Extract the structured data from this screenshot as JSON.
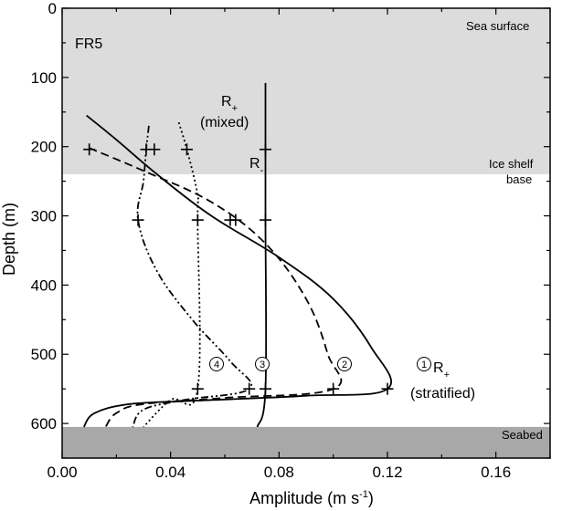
{
  "chart_data": {
    "type": "line",
    "panel_label": "FR5",
    "xlabel": "Amplitude (m s",
    "xlabel_sup": "-1",
    "xlabel_close": ")",
    "ylabel": "Depth (m)",
    "xlim": [
      0,
      0.18
    ],
    "ylim": [
      650,
      0
    ],
    "y_inverted": true,
    "x_ticks": [
      0.0,
      0.04,
      0.08,
      0.12,
      0.16
    ],
    "x_tick_labels": [
      "0.00",
      "0.04",
      "0.08",
      "0.12",
      "0.16"
    ],
    "y_ticks": [
      0,
      100,
      200,
      300,
      400,
      500,
      600
    ],
    "y_tick_labels": [
      "0",
      "100",
      "200",
      "300",
      "400",
      "500",
      "600"
    ],
    "regions": [
      {
        "label": "Sea surface",
        "y_from": 0,
        "y_to": 240,
        "color": "#dcdcdc"
      },
      {
        "label": "Seabed",
        "y_from": 605,
        "y_to": 650,
        "color": "#a8a8a8"
      }
    ],
    "region_labels": {
      "sea_surface": "Sea surface",
      "ice_shelf_base_1": "Ice shelf",
      "ice_shelf_base_2": "base",
      "seabed": "Seabed"
    },
    "curve_labels": {
      "r_plus_mixed_main": "R",
      "r_plus_mixed_sub": "+",
      "r_plus_mixed_note": "(mixed)",
      "r_minus_main": "R",
      "r_minus_sub": "-",
      "r_plus_strat_main": "R",
      "r_plus_strat_sub": "+",
      "r_plus_strat_note": "(stratified)"
    },
    "mode_numbers": [
      "1",
      "2",
      "3",
      "4"
    ],
    "series": [
      {
        "style": "solid",
        "x": [
          0.009,
          0.02,
          0.035,
          0.055,
          0.08,
          0.1,
          0.114,
          0.12,
          0.09,
          0.05,
          0.025,
          0.012,
          0.008
        ],
        "y": [
          155,
          190,
          240,
          300,
          360,
          420,
          490,
          550,
          560,
          567,
          572,
          585,
          605
        ],
        "markers_x": [
          0.034,
          0.064,
          0.12
        ],
        "markers_y": [
          204,
          306,
          550
        ]
      },
      {
        "style": "dashed",
        "x": [
          0.01,
          0.03,
          0.055,
          0.075,
          0.09,
          0.098,
          0.1,
          0.06,
          0.03,
          0.02,
          0.016
        ],
        "y": [
          202,
          235,
          280,
          340,
          420,
          500,
          550,
          563,
          572,
          585,
          605
        ],
        "markers_x": [
          0.01,
          0.062,
          0.1
        ],
        "markers_y": [
          204,
          306,
          550
        ]
      },
      {
        "style": "dash-dot-dot",
        "x": [
          0.032,
          0.031,
          0.03,
          0.028,
          0.035,
          0.048,
          0.062,
          0.069,
          0.045,
          0.03,
          0.026
        ],
        "y": [
          170,
          204,
          250,
          306,
          380,
          450,
          510,
          550,
          566,
          580,
          605
        ],
        "markers_x": [
          0.031,
          0.028,
          0.069
        ],
        "markers_y": [
          204,
          306,
          550
        ],
        "note": "R+ (mixed) region start"
      },
      {
        "style": "dotted",
        "x": [
          0.043,
          0.046,
          0.05,
          0.05,
          0.05,
          0.04,
          0.03
        ],
        "y": [
          165,
          204,
          270,
          306,
          550,
          566,
          605
        ],
        "markers_x": [
          0.046,
          0.05,
          0.05
        ],
        "markers_y": [
          204,
          306,
          550
        ]
      },
      {
        "style": "solid-vertical",
        "x": [
          0.075,
          0.075,
          0.075,
          0.075,
          0.072
        ],
        "y": [
          108,
          204,
          306,
          550,
          605
        ],
        "markers_x": [
          0.075,
          0.075,
          0.075
        ],
        "markers_y": [
          204,
          306,
          550
        ]
      }
    ]
  }
}
